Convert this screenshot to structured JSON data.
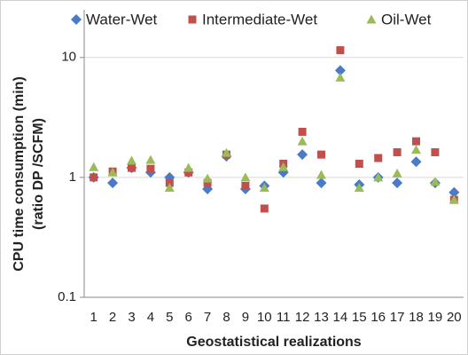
{
  "chart_data": {
    "type": "scatter",
    "ylabel": [
      "CPU time consumption (min)",
      "(ratio DP /SCFM)"
    ],
    "xlabel": "Geostatistical realizations",
    "categories": [
      "1",
      "2",
      "3",
      "4",
      "5",
      "6",
      "7",
      "8",
      "9",
      "10",
      "11",
      "12",
      "13",
      "14",
      "15",
      "16",
      "17",
      "18",
      "19",
      "20"
    ],
    "series": [
      {
        "name": "Water-Wet",
        "color": "#4a7bc8",
        "marker": "diamond",
        "values": [
          1.0,
          0.9,
          1.2,
          1.1,
          1.0,
          1.1,
          0.8,
          1.5,
          0.8,
          0.85,
          1.1,
          1.55,
          0.9,
          7.8,
          0.87,
          1.0,
          0.9,
          1.35,
          0.9,
          0.75
        ]
      },
      {
        "name": "Intermediate-Wet",
        "color": "#c0504d",
        "marker": "square",
        "values": [
          1.0,
          1.12,
          1.2,
          1.18,
          0.9,
          1.1,
          0.9,
          1.55,
          0.85,
          0.55,
          1.3,
          2.4,
          1.55,
          11.5,
          1.3,
          1.45,
          1.62,
          2.0,
          1.62,
          0.65
        ]
      },
      {
        "name": "Oil-Wet",
        "color": "#9bbb59",
        "marker": "triangle",
        "values": [
          1.22,
          1.1,
          1.38,
          1.4,
          0.82,
          1.2,
          0.98,
          1.6,
          1.0,
          0.82,
          1.22,
          2.0,
          1.05,
          6.8,
          0.82,
          1.0,
          1.08,
          1.7,
          0.92,
          0.65
        ]
      }
    ],
    "ylim": [
      0.1,
      25
    ],
    "yticks": [
      0.1,
      1,
      10
    ],
    "log_y": true,
    "grid": true,
    "legend": "top"
  }
}
